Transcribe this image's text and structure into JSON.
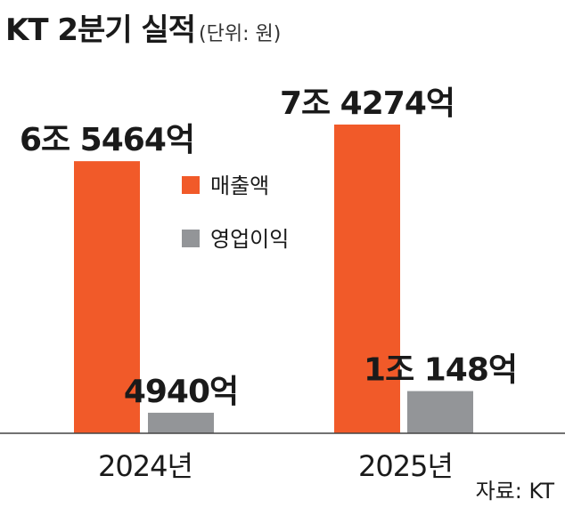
{
  "header": {
    "title": "KT 2분기 실적",
    "unit": "(단위: 원)"
  },
  "chart_data": {
    "type": "bar",
    "categories": [
      "2024년",
      "2025년"
    ],
    "unit": "원",
    "series": [
      {
        "name": "매출액",
        "color": "#f15a29",
        "values": [
          6546400000000,
          7427400000000
        ],
        "labels": [
          "6조 5464억",
          "7조 4274억"
        ]
      },
      {
        "name": "영업이익",
        "color": "#939598",
        "values": [
          494000000000,
          1014800000000
        ],
        "labels": [
          "4940억",
          "1조 148억"
        ]
      }
    ],
    "legend_position": "center",
    "grid": false
  },
  "footer": {
    "source": "자료: KT"
  }
}
